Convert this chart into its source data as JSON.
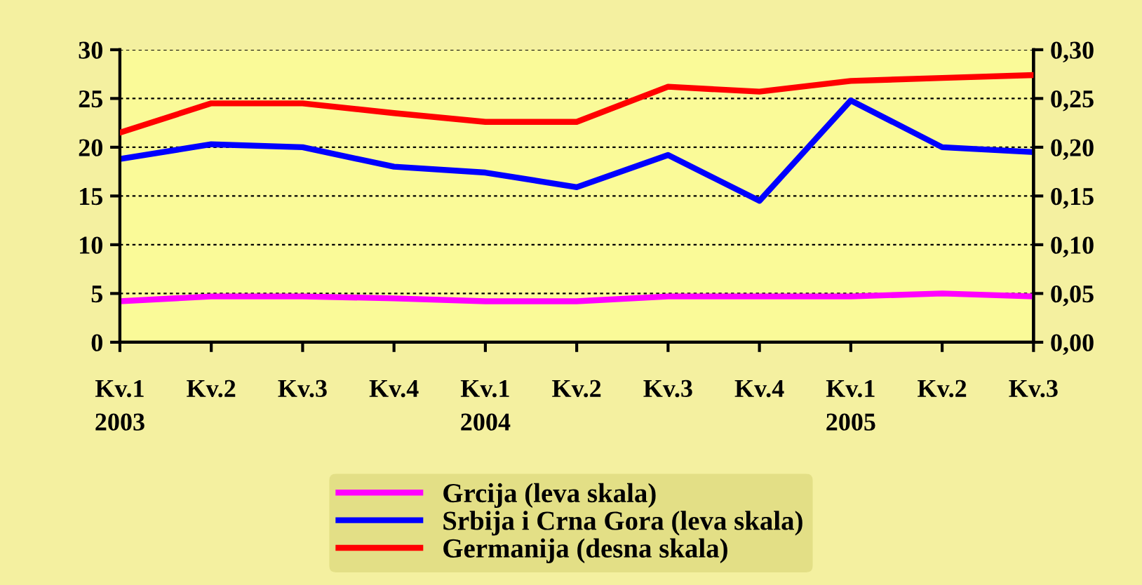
{
  "chart_data": {
    "type": "line",
    "categories": [
      "Kv.1\n2003",
      "Kv.2",
      "Kv.3",
      "Kv.4",
      "Kv.1\n2004",
      "Kv.2",
      "Kv.3",
      "Kv.4",
      "Kv.1\n2005",
      "Kv.2",
      "Kv.3"
    ],
    "series": [
      {
        "name": "Grcija (leva skala)",
        "color": "#ff00ff",
        "values": [
          4.2,
          4.7,
          4.7,
          4.5,
          4.2,
          4.2,
          4.7,
          4.7,
          4.7,
          5.0,
          4.7
        ]
      },
      {
        "name": "Srbija i Crna Gora (leva skala)",
        "color": "#0000ff",
        "values": [
          18.8,
          20.3,
          20.0,
          18.0,
          17.4,
          15.9,
          19.2,
          14.5,
          24.8,
          20.0,
          19.5
        ]
      },
      {
        "name": "Germanija (desna skala)",
        "color": "#ff0000",
        "axis": "y2",
        "values": [
          0.215,
          0.245,
          0.245,
          0.235,
          0.226,
          0.226,
          0.262,
          0.257,
          0.268,
          0.271,
          0.274
        ]
      }
    ],
    "ylim": [
      0,
      30
    ],
    "yticks": [
      0,
      5,
      10,
      15,
      20,
      25,
      30
    ],
    "y2lim": [
      0,
      0.3
    ],
    "y2ticks": [
      {
        "value": 0,
        "label": "0,00"
      },
      {
        "value": 0.05,
        "label": "0,05"
      },
      {
        "value": 0.1,
        "label": "0,10"
      },
      {
        "value": 0.15,
        "label": "0,15"
      },
      {
        "value": 0.2,
        "label": "0,20"
      },
      {
        "value": 0.25,
        "label": "0,25"
      },
      {
        "value": 0.3,
        "label": "0,30"
      }
    ],
    "grid": "y",
    "legend": "bottom",
    "marker": "none",
    "line_style": "solid"
  }
}
